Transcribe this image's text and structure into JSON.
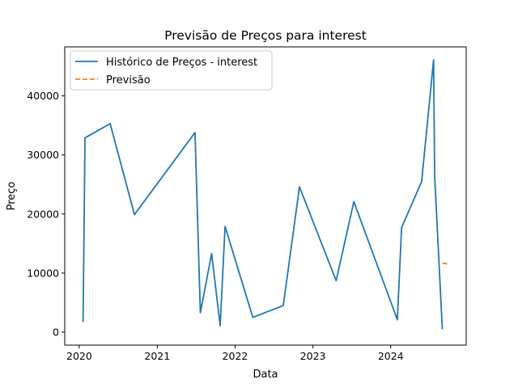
{
  "chart_data": {
    "type": "line",
    "title": "Previsão de Preços para interest",
    "xlabel": "Data",
    "ylabel": "Preço",
    "xlim": [
      "2019-10-25",
      "2024-12-20"
    ],
    "ylim": [
      -2200,
      48300
    ],
    "x_ticks": [
      "2020",
      "2021",
      "2022",
      "2023",
      "2024"
    ],
    "x_tick_dates": [
      "2020-01-01",
      "2021-01-01",
      "2022-01-01",
      "2023-01-01",
      "2024-01-01"
    ],
    "y_ticks": [
      0,
      10000,
      20000,
      30000,
      40000
    ],
    "y_tick_labels": [
      "0",
      "10000",
      "20000",
      "30000",
      "40000"
    ],
    "grid": false,
    "legend": {
      "position": "top-left",
      "entries": [
        "Histórico de Preços - interest",
        "Previsão"
      ]
    },
    "series": [
      {
        "name": "Histórico de Preços - interest",
        "color": "#1f77b4",
        "dash": "solid",
        "points": [
          [
            "2020-01-19",
            1700
          ],
          [
            "2020-01-28",
            32900
          ],
          [
            "2020-05-25",
            35300
          ],
          [
            "2020-09-16",
            19900
          ],
          [
            "2021-06-27",
            33800
          ],
          [
            "2021-07-22",
            3300
          ],
          [
            "2021-09-13",
            13300
          ],
          [
            "2021-10-23",
            1100
          ],
          [
            "2021-11-15",
            17900
          ],
          [
            "2022-03-25",
            2500
          ],
          [
            "2022-08-15",
            4500
          ],
          [
            "2022-10-30",
            24600
          ],
          [
            "2023-04-20",
            8700
          ],
          [
            "2023-07-12",
            22100
          ],
          [
            "2024-02-01",
            2100
          ],
          [
            "2024-02-21",
            17700
          ],
          [
            "2024-05-25",
            25500
          ],
          [
            "2024-07-20",
            46100
          ],
          [
            "2024-07-25",
            26500
          ],
          [
            "2024-08-30",
            500
          ]
        ]
      },
      {
        "name": "Previsão",
        "color": "#ff7f0e",
        "dash": "dashed",
        "points": [
          [
            "2024-08-30",
            11700
          ],
          [
            "2024-09-30",
            11500
          ]
        ]
      }
    ]
  }
}
